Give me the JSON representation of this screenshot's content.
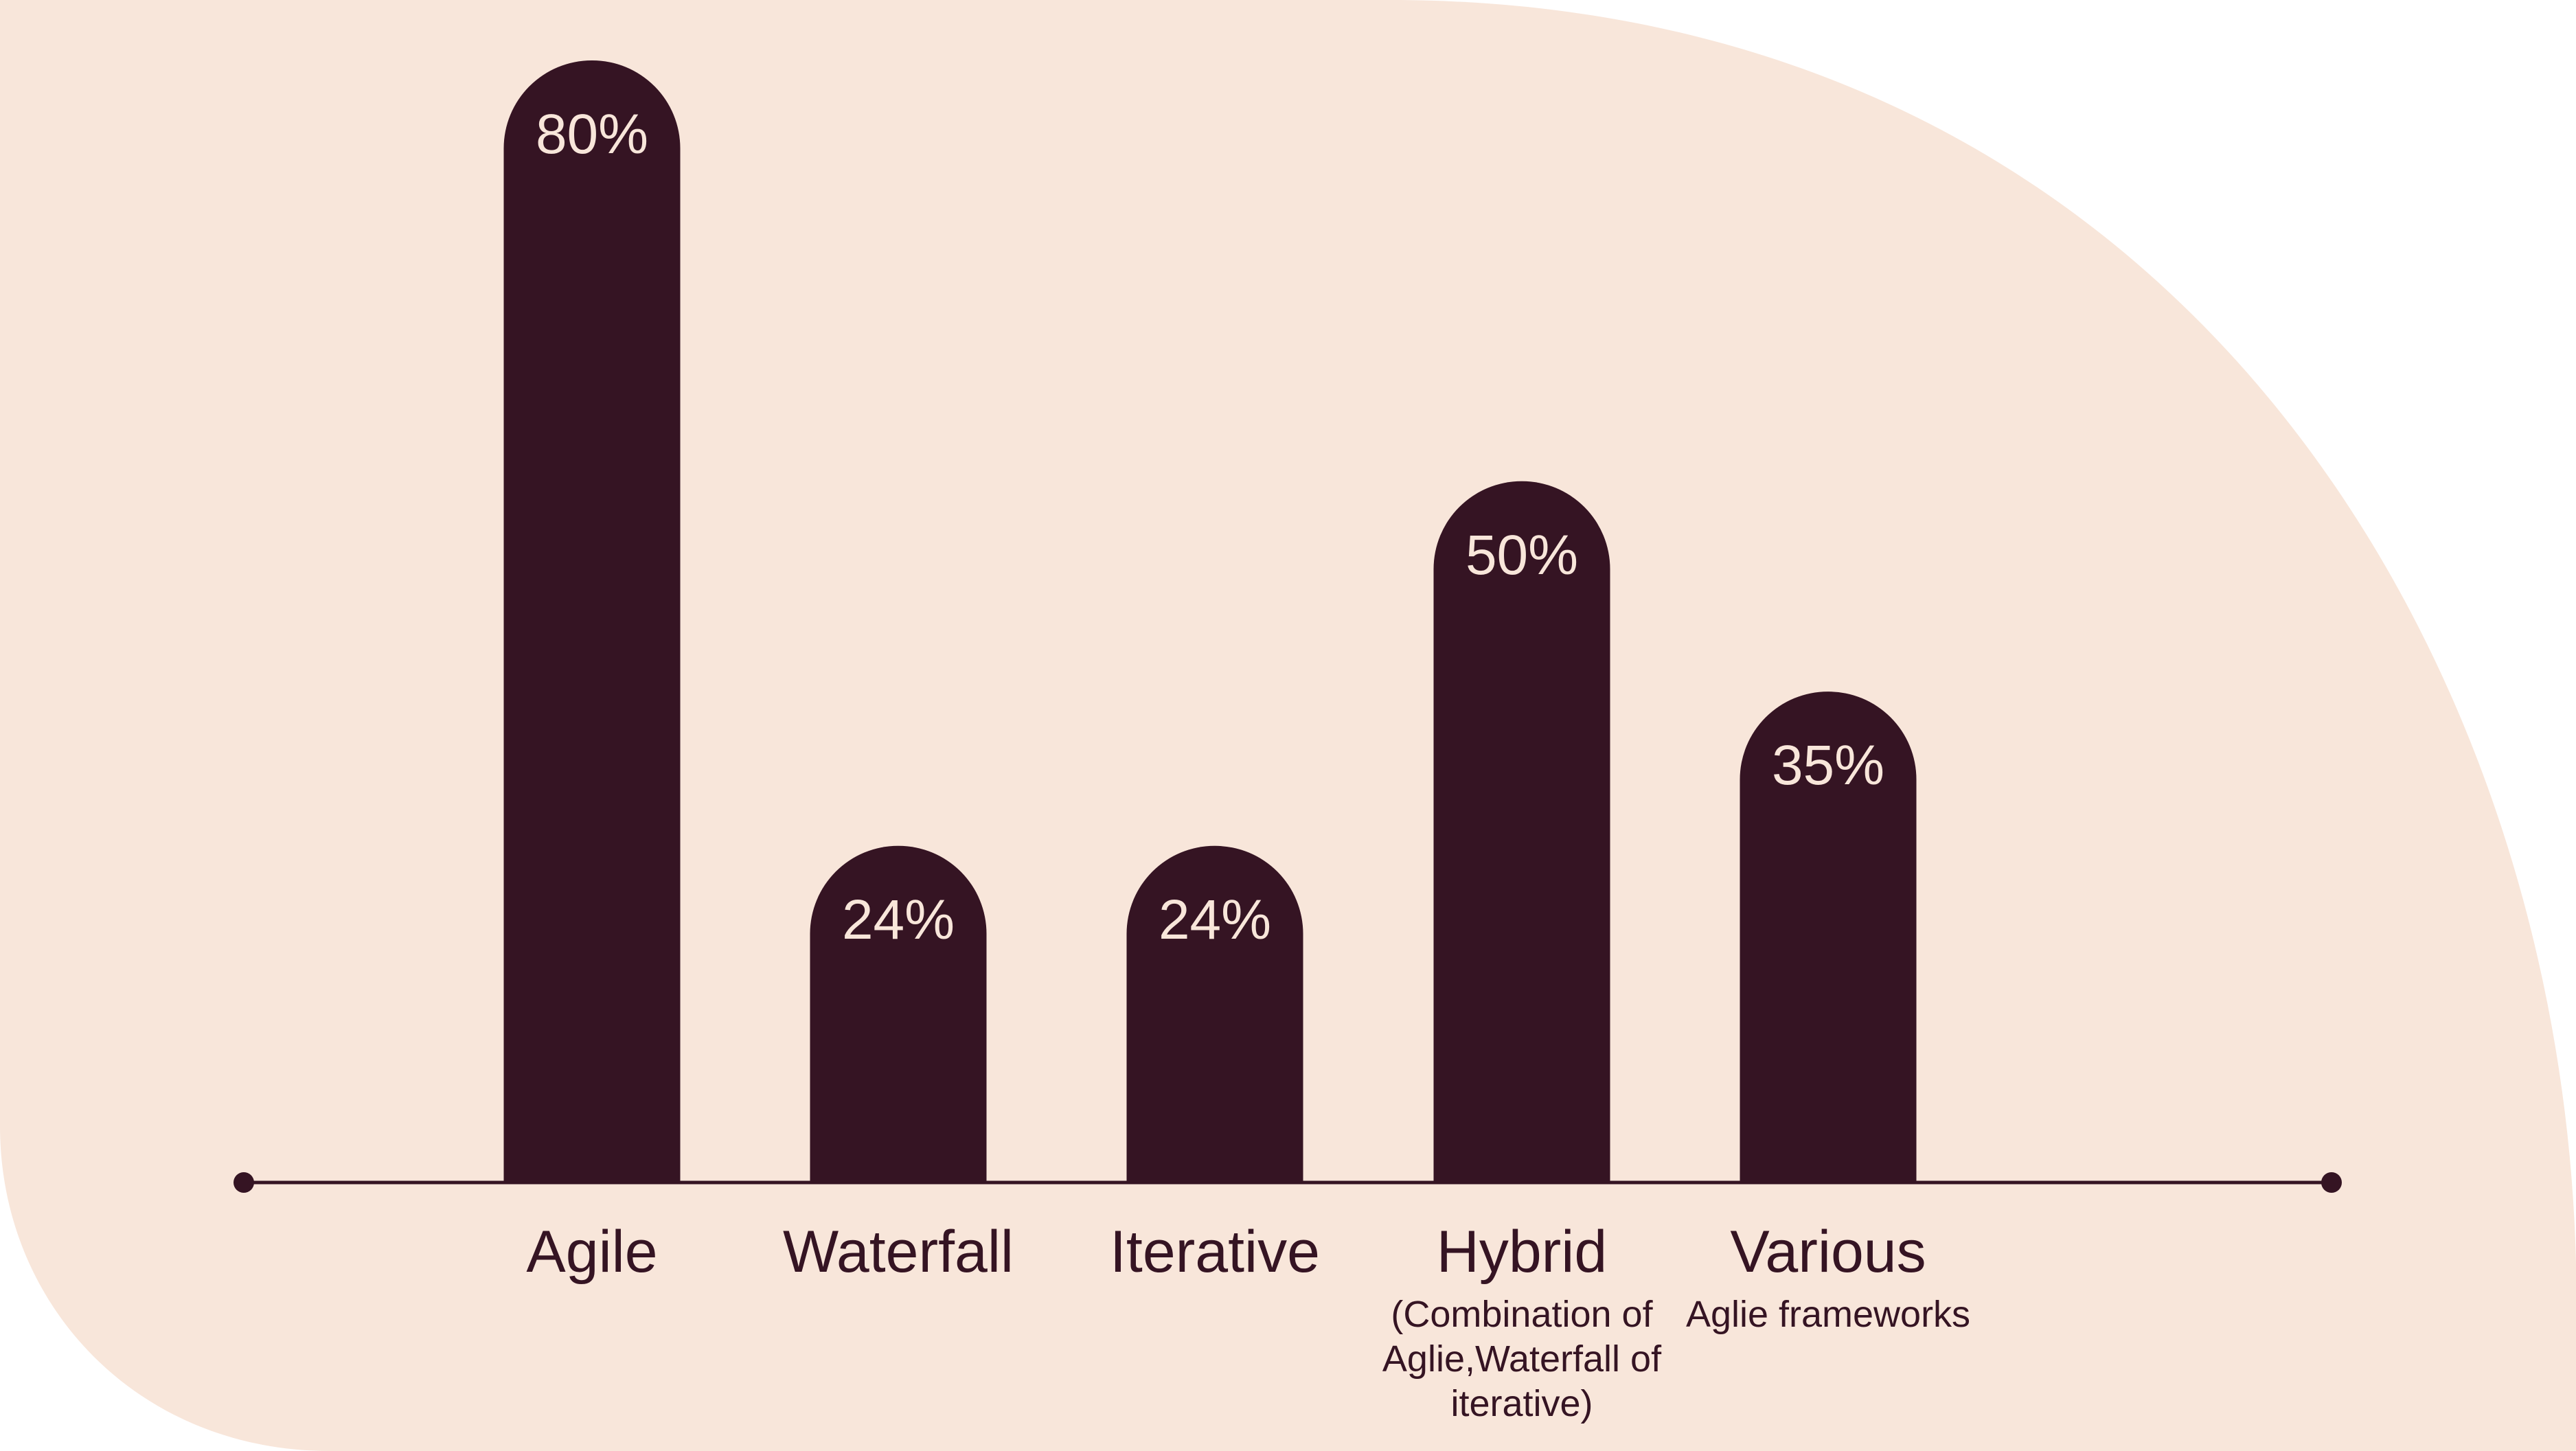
{
  "colors": {
    "background_shape": "#F8E6DA",
    "bar": "#351423",
    "value_text": "#F8E6DA",
    "label_text": "#351423"
  },
  "chart_data": {
    "type": "bar",
    "categories": [
      "Agile",
      "Waterfall",
      "Iterative",
      "Hybrid",
      "Various"
    ],
    "values": [
      80,
      24,
      24,
      50,
      35
    ],
    "value_labels": [
      "80%",
      "24%",
      "24%",
      "50%",
      "35%"
    ],
    "sublabels": [
      [],
      [],
      [],
      [
        "(Combination of",
        "Aglie,Waterfall of",
        "iterative)"
      ],
      [
        "Aglie frameworks"
      ]
    ],
    "title": "",
    "xlabel": "",
    "ylabel": "",
    "ylim": [
      0,
      80
    ],
    "grid": false,
    "legend": "none"
  }
}
